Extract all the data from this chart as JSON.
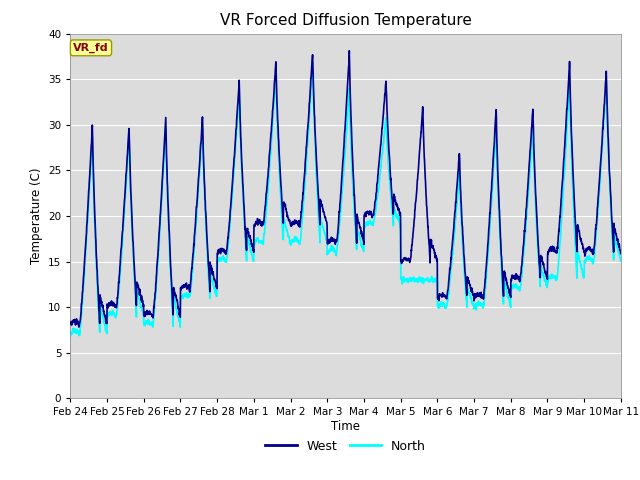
{
  "title": "VR Forced Diffusion Temperature",
  "ylabel": "Temperature (C)",
  "xlabel": "Time",
  "annotation": "VR_fd",
  "annotation_color": "#8B0000",
  "annotation_bg": "#FFFF99",
  "ylim": [
    0,
    40
  ],
  "yticks": [
    0,
    5,
    10,
    15,
    20,
    25,
    30,
    35,
    40
  ],
  "west_color": "#00008B",
  "north_color": "#00FFFF",
  "bg_color": "#DCDCDC",
  "linewidth": 1.2,
  "num_days": 15,
  "x_tick_labels": [
    "Feb 24",
    "Feb 25",
    "Feb 26",
    "Feb 27",
    "Feb 28",
    "Mar 1",
    "Mar 2",
    "Mar 3",
    "Mar 4",
    "Mar 5",
    "Mar 6",
    "Mar 7",
    "Mar 8",
    "Mar 9",
    "Mar 10",
    "Mar 11"
  ],
  "daily_peaks_west": [
    30,
    30,
    31,
    31,
    35,
    37,
    38,
    38,
    35,
    32,
    27,
    32,
    32,
    37,
    36
  ],
  "daily_mins_west": [
    8,
    10,
    9,
    12,
    16,
    19,
    19,
    17,
    20,
    15,
    11,
    11,
    13,
    16,
    16
  ],
  "daily_peaks_north": [
    29,
    29,
    30,
    30,
    34,
    36,
    37,
    34,
    31,
    13,
    25,
    30,
    30,
    35,
    35
  ],
  "daily_mins_north": [
    7,
    9,
    8,
    11,
    15,
    17,
    17,
    16,
    19,
    13,
    10,
    10,
    12,
    13,
    15
  ]
}
